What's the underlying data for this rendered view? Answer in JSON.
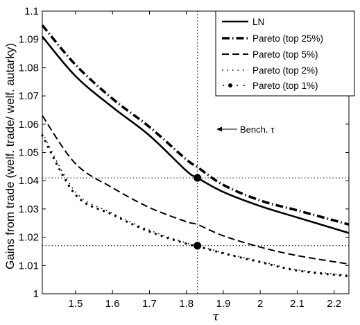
{
  "chart_data": {
    "type": "line",
    "title": "",
    "xlabel": "τ",
    "ylabel": "Gains from trade (welf. trade/ welf. autarky)",
    "xlim": [
      1.41,
      2.24
    ],
    "ylim": [
      1.0,
      1.1
    ],
    "xticks": [
      1.5,
      1.6,
      1.7,
      1.8,
      1.9,
      2.0,
      2.1,
      2.2
    ],
    "xtick_labels": [
      "1.5",
      "1.6",
      "1.7",
      "1.8",
      "1.9",
      "2",
      "2.1",
      "2.2"
    ],
    "yticks": [
      1.0,
      1.01,
      1.02,
      1.03,
      1.04,
      1.05,
      1.06,
      1.07,
      1.08,
      1.09,
      1.1
    ],
    "ytick_labels": [
      "1",
      "1.01",
      "1.02",
      "1.03",
      "1.04",
      "1.05",
      "1.06",
      "1.07",
      "1.08",
      "1.09",
      "1.1"
    ],
    "grid": false,
    "legend_position": "top-right",
    "series": [
      {
        "name": "LN",
        "style": "solid",
        "x": [
          1.41,
          1.5,
          1.6,
          1.7,
          1.8,
          1.83,
          1.9,
          2.0,
          2.1,
          2.24
        ],
        "y": [
          1.091,
          1.077,
          1.066,
          1.056,
          1.0435,
          1.041,
          1.036,
          1.031,
          1.027,
          1.0215
        ]
      },
      {
        "name": "Pareto (top 25%)",
        "style": "dash-dot",
        "x": [
          1.41,
          1.5,
          1.6,
          1.7,
          1.8,
          1.83,
          1.9,
          2.0,
          2.1,
          2.24
        ],
        "y": [
          1.095,
          1.081,
          1.069,
          1.059,
          1.0475,
          1.0448,
          1.0385,
          1.033,
          1.0295,
          1.0245
        ]
      },
      {
        "name": "Pareto (top 5%)",
        "style": "dashed",
        "x": [
          1.41,
          1.5,
          1.6,
          1.7,
          1.8,
          1.83,
          1.9,
          2.0,
          2.1,
          2.24
        ],
        "y": [
          1.063,
          1.046,
          1.0375,
          1.0305,
          1.0255,
          1.0245,
          1.0205,
          1.0165,
          1.0135,
          1.0105
        ]
      },
      {
        "name": "Pareto (top 2%)",
        "style": "dotted",
        "x": [
          1.41,
          1.5,
          1.6,
          1.7,
          1.8,
          1.83,
          1.9,
          2.0,
          2.1,
          2.24
        ],
        "y": [
          1.057,
          1.036,
          1.0285,
          1.0225,
          1.018,
          1.017,
          1.0145,
          1.0115,
          1.0085,
          1.0065
        ]
      },
      {
        "name": "Pareto (top 1%)",
        "style": "dots",
        "x": [
          1.41,
          1.5,
          1.6,
          1.7,
          1.8,
          1.83,
          1.9,
          2.0,
          2.1,
          2.24
        ],
        "y": [
          1.056,
          1.035,
          1.028,
          1.022,
          1.0177,
          1.0168,
          1.0143,
          1.0112,
          1.0082,
          1.0062
        ]
      }
    ],
    "reference_lines": {
      "vertical_x": 1.83,
      "horizontal_y": [
        1.041,
        1.017
      ]
    },
    "markers": [
      {
        "x": 1.83,
        "y": 1.041
      },
      {
        "x": 1.83,
        "y": 1.017
      }
    ],
    "annotations": [
      {
        "text": "Bench. τ",
        "x": 1.83,
        "y": 1.0845
      }
    ]
  }
}
